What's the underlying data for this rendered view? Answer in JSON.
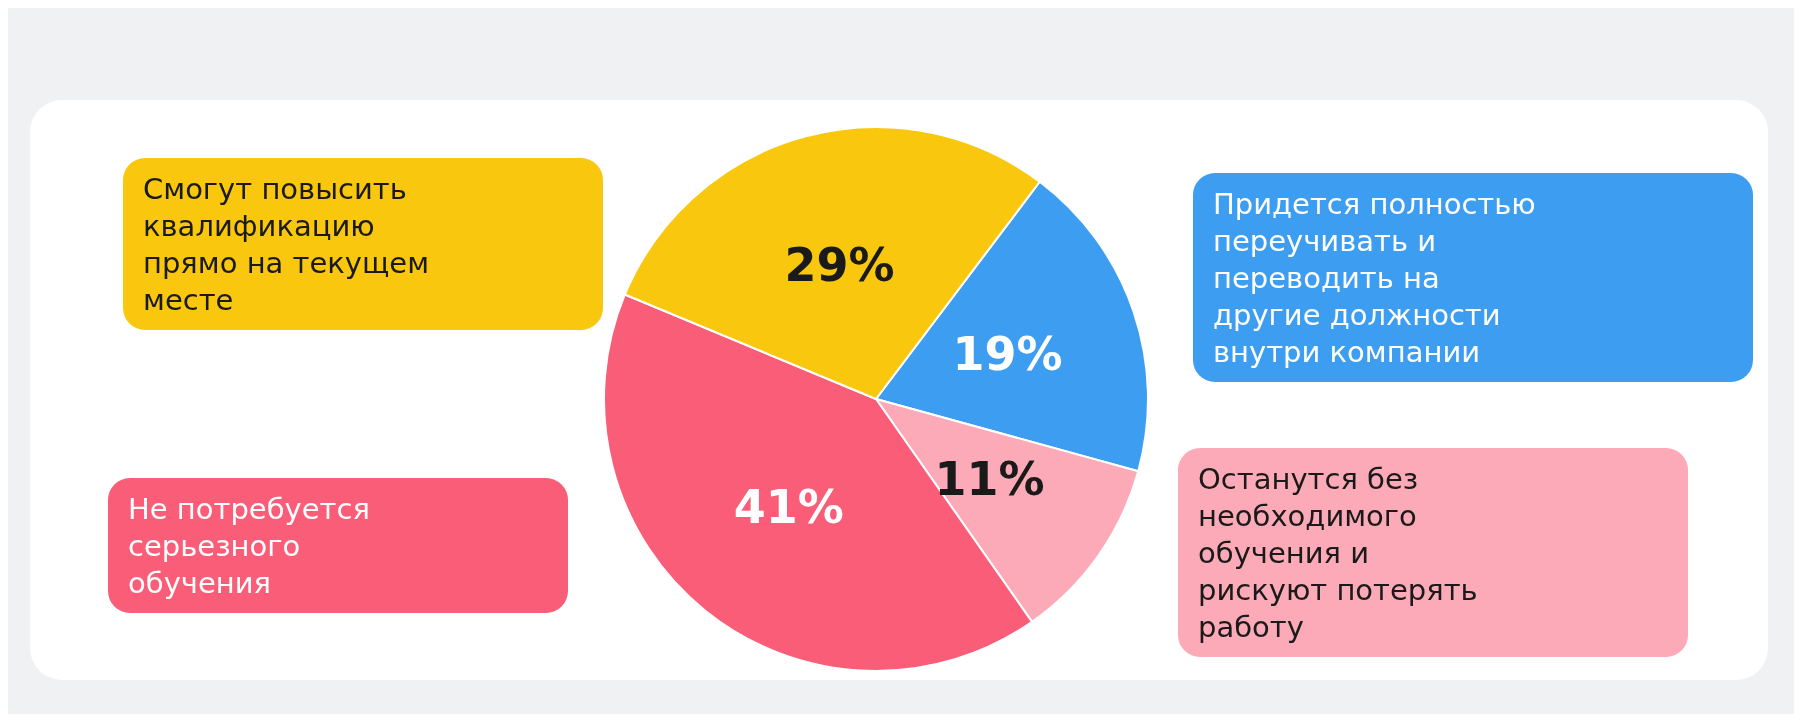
{
  "chart_data": {
    "type": "pie",
    "categories": [
      "Придется полностью переучивать и переводить на другие должности внутри компании",
      "Останутся без необходимого обучения и рискуют потерять работу",
      "Не потребуется серьезного обучения",
      "Смогут повысить квалификацию прямо на текущем месте"
    ],
    "values": [
      19,
      11,
      41,
      29
    ],
    "colors": [
      "#3d9df0",
      "#fcaab8",
      "#f95d78",
      "#f9c80e"
    ],
    "value_labels": [
      "19%",
      "11%",
      "41%",
      "29%"
    ],
    "legend": false
  }
}
